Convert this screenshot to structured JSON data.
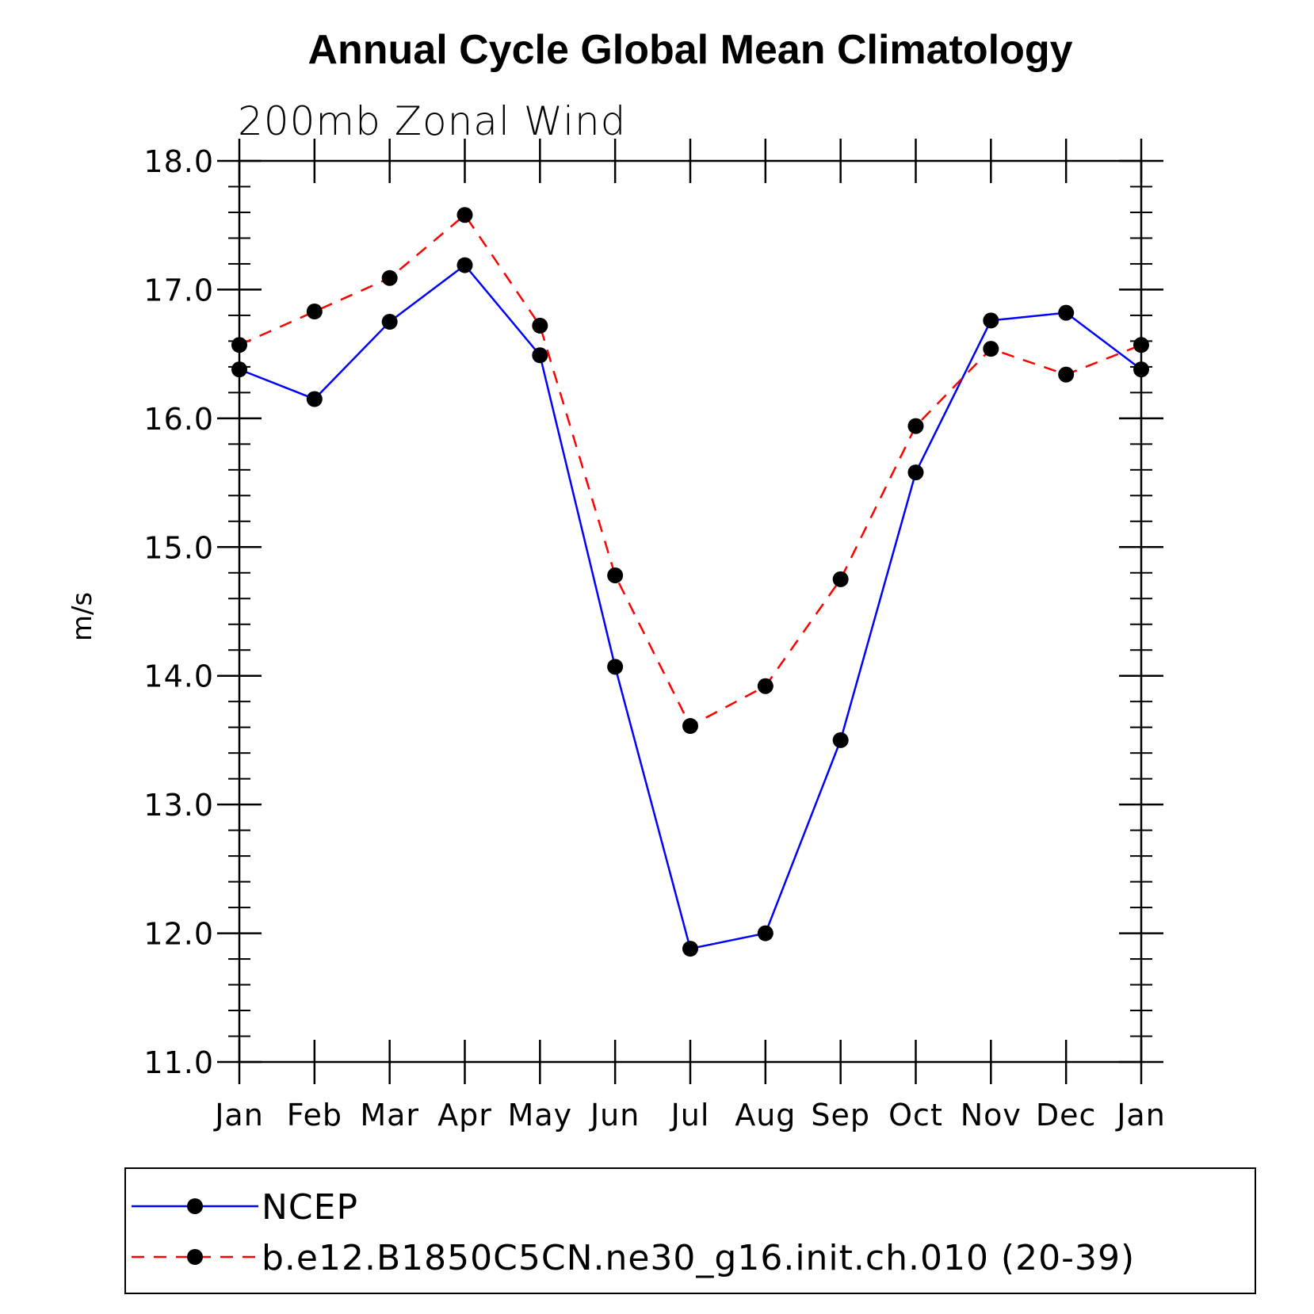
{
  "chart_data": {
    "type": "line",
    "title": "Annual Cycle Global Mean Climatology",
    "subtitle": "200mb Zonal Wind",
    "xlabel": "",
    "ylabel": "m/s",
    "categories": [
      "Jan",
      "Feb",
      "Mar",
      "Apr",
      "May",
      "Jun",
      "Jul",
      "Aug",
      "Sep",
      "Oct",
      "Nov",
      "Dec",
      "Jan"
    ],
    "ylim": [
      11.0,
      18.0
    ],
    "yticks": [
      "11.0",
      "12.0",
      "13.0",
      "14.0",
      "15.0",
      "16.0",
      "17.0",
      "18.0"
    ],
    "grid": false,
    "legend_position": "bottom",
    "series": [
      {
        "name": "NCEP",
        "color": "#0000ff",
        "line_style": "solid",
        "marker": "filled-circle",
        "values": [
          16.38,
          16.15,
          16.75,
          17.19,
          16.49,
          14.07,
          11.88,
          12.0,
          13.5,
          15.58,
          16.76,
          16.82,
          16.38
        ]
      },
      {
        "name": "b.e12.B1850C5CN.ne30_g16.init.ch.010 (20-39)",
        "color": "#ff0000",
        "line_style": "dashed",
        "marker": "filled-circle",
        "values": [
          16.57,
          16.83,
          17.09,
          17.58,
          16.72,
          14.78,
          13.61,
          13.92,
          14.75,
          15.94,
          16.54,
          16.34,
          16.57
        ]
      }
    ]
  }
}
